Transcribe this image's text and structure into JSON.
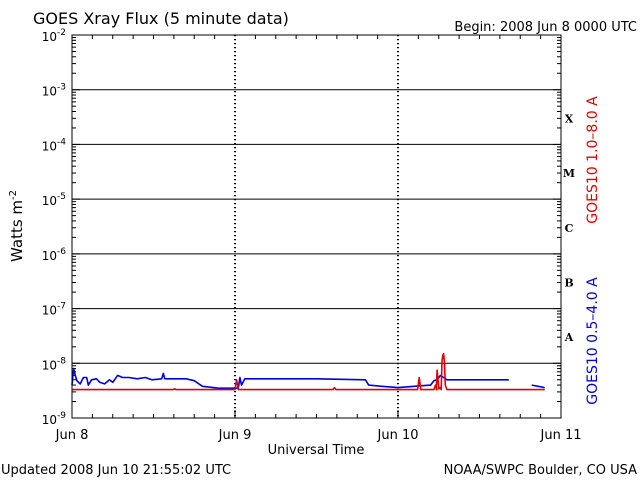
{
  "chart_data": {
    "type": "line",
    "title": "GOES Xray Flux (5 minute data)",
    "begin_label": "Begin:  2008 Jun 8 0000 UTC",
    "xlabel": "Universal Time",
    "ylabel": "Watts m",
    "ylabel_superscript": "-2",
    "y_scale": "log",
    "ylim": [
      1e-09,
      0.01
    ],
    "y_ticks": [
      {
        "base": "10",
        "exp": "-2"
      },
      {
        "base": "10",
        "exp": "-3"
      },
      {
        "base": "10",
        "exp": "-4"
      },
      {
        "base": "10",
        "exp": "-5"
      },
      {
        "base": "10",
        "exp": "-6"
      },
      {
        "base": "10",
        "exp": "-7"
      },
      {
        "base": "10",
        "exp": "-8"
      },
      {
        "base": "10",
        "exp": "-9"
      }
    ],
    "x_range_days": [
      0,
      3
    ],
    "x_ticks": [
      {
        "label": "Jun 8",
        "day": 0
      },
      {
        "label": "Jun 9",
        "day": 1
      },
      {
        "label": "Jun 10",
        "day": 2
      },
      {
        "label": "Jun 11",
        "day": 3
      }
    ],
    "flare_classes": [
      {
        "label": "X",
        "flux": 0.0003
      },
      {
        "label": "M",
        "flux": 3e-05
      },
      {
        "label": "C",
        "flux": 3e-06
      },
      {
        "label": "B",
        "flux": 3e-07
      },
      {
        "label": "A",
        "flux": 3e-08
      }
    ],
    "series": [
      {
        "name": "GOES10 1.0–8.0 A",
        "color": "#e00000",
        "points": [
          [
            0.0,
            3.3e-09
          ],
          [
            0.62,
            3.3e-09
          ],
          [
            0.63,
            3.4e-09
          ],
          [
            0.64,
            3.3e-09
          ],
          [
            1.0,
            3.3e-09
          ],
          [
            1.01,
            5e-09
          ],
          [
            1.02,
            3.3e-09
          ],
          [
            1.6,
            3.3e-09
          ],
          [
            1.61,
            3.6e-09
          ],
          [
            1.62,
            3.3e-09
          ],
          [
            2.12,
            3.3e-09
          ],
          [
            2.13,
            5.5e-09
          ],
          [
            2.14,
            3.3e-09
          ],
          [
            2.22,
            3.3e-09
          ],
          [
            2.23,
            4e-09
          ],
          [
            2.24,
            3.3e-09
          ],
          [
            2.235,
            3.3e-09
          ],
          [
            2.24,
            7.5e-09
          ],
          [
            2.25,
            3.4e-09
          ],
          [
            2.26,
            3.6e-09
          ],
          [
            2.265,
            3.3e-09
          ],
          [
            2.27,
            1.1e-08
          ],
          [
            2.275,
            1.4e-08
          ],
          [
            2.28,
            1.5e-08
          ],
          [
            2.285,
            1e-08
          ],
          [
            2.29,
            4e-09
          ],
          [
            2.3,
            3.3e-09
          ],
          [
            2.68,
            3.3e-09
          ],
          [
            2.82,
            3.3e-09
          ],
          [
            2.9,
            3.3e-09
          ]
        ]
      },
      {
        "name": "GOES10 0.5–4.0 A",
        "color": "#0000e0",
        "points": [
          [
            0.0,
            4e-09
          ],
          [
            0.01,
            8e-09
          ],
          [
            0.02,
            6e-09
          ],
          [
            0.03,
            4.8e-09
          ],
          [
            0.05,
            4.2e-09
          ],
          [
            0.07,
            5.5e-09
          ],
          [
            0.09,
            5.5e-09
          ],
          [
            0.1,
            4e-09
          ],
          [
            0.12,
            5e-09
          ],
          [
            0.15,
            5.2e-09
          ],
          [
            0.17,
            4.5e-09
          ],
          [
            0.2,
            4.2e-09
          ],
          [
            0.23,
            5e-09
          ],
          [
            0.25,
            4.5e-09
          ],
          [
            0.28,
            6e-09
          ],
          [
            0.31,
            5.5e-09
          ],
          [
            0.35,
            5.5e-09
          ],
          [
            0.4,
            5.2e-09
          ],
          [
            0.45,
            5.5e-09
          ],
          [
            0.49,
            5e-09
          ],
          [
            0.55,
            5.2e-09
          ],
          [
            0.56,
            6.5e-09
          ],
          [
            0.57,
            5.2e-09
          ],
          [
            0.7,
            5.2e-09
          ],
          [
            0.75,
            4.8e-09
          ],
          [
            0.8,
            3.8e-09
          ],
          [
            0.9,
            3.5e-09
          ],
          [
            1.0,
            3.5e-09
          ],
          [
            1.02,
            3.5e-09
          ],
          [
            1.03,
            5.5e-09
          ],
          [
            1.04,
            4e-09
          ],
          [
            1.06,
            5.2e-09
          ],
          [
            1.2,
            5.2e-09
          ],
          [
            1.5,
            5.2e-09
          ],
          [
            1.8,
            5e-09
          ],
          [
            1.82,
            4e-09
          ],
          [
            1.9,
            3.8e-09
          ],
          [
            2.0,
            3.6e-09
          ],
          [
            2.1,
            3.8e-09
          ],
          [
            2.2,
            4e-09
          ],
          [
            2.22,
            4.8e-09
          ],
          [
            2.24,
            5e-09
          ],
          [
            2.26,
            6e-09
          ],
          [
            2.28,
            5.5e-09
          ],
          [
            2.3,
            5e-09
          ],
          [
            2.4,
            5e-09
          ],
          [
            2.68,
            5e-09
          ],
          null,
          [
            2.82,
            4e-09
          ],
          [
            2.86,
            3.8e-09
          ],
          [
            2.9,
            3.6e-09
          ]
        ]
      }
    ]
  },
  "footer": {
    "updated": "Updated 2008 Jun 10 21:55:02 UTC",
    "credit": "NOAA/SWPC Boulder, CO USA"
  }
}
